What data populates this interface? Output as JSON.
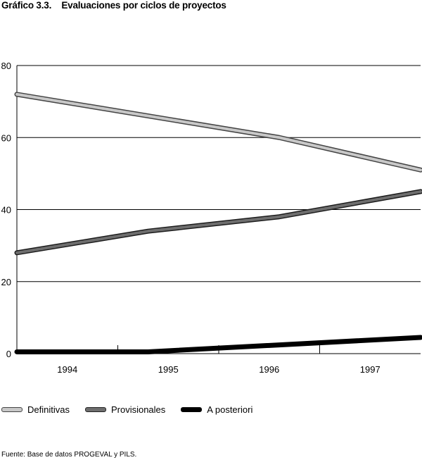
{
  "title": "Gráfico 3.3.    Evaluaciones por ciclos de proyectos",
  "footer": "Fuente: Base de datos PROGEVAL y PILS.",
  "colors": {
    "definitivas": "#c8c8c8",
    "provisionales": "#6e6e6e",
    "a_posteriori": "#000000"
  },
  "chart_data": {
    "type": "line",
    "title": "Evaluaciones por ciclos de proyectos",
    "categories": [
      "1994",
      "1995",
      "1996",
      "1997"
    ],
    "yticks": [
      "0",
      "20",
      "40",
      "60",
      "80"
    ],
    "ylim": [
      0,
      80
    ],
    "grid": true,
    "legend": "bottom",
    "series": [
      {
        "name": "Definitivas",
        "color_key": "definitivas",
        "points": [
          [
            1993.5,
            72
          ],
          [
            1996.1,
            60
          ],
          [
            1997.5,
            51
          ]
        ]
      },
      {
        "name": "Provisionales",
        "color_key": "provisionales",
        "points": [
          [
            1993.5,
            28
          ],
          [
            1994.8,
            34
          ],
          [
            1996.1,
            38
          ],
          [
            1997.5,
            45
          ]
        ]
      },
      {
        "name": "A posteriori",
        "color_key": "a_posteriori",
        "points": [
          [
            1993.5,
            0.5
          ],
          [
            1994.8,
            0.5
          ],
          [
            1997.5,
            4.5
          ]
        ]
      }
    ]
  }
}
